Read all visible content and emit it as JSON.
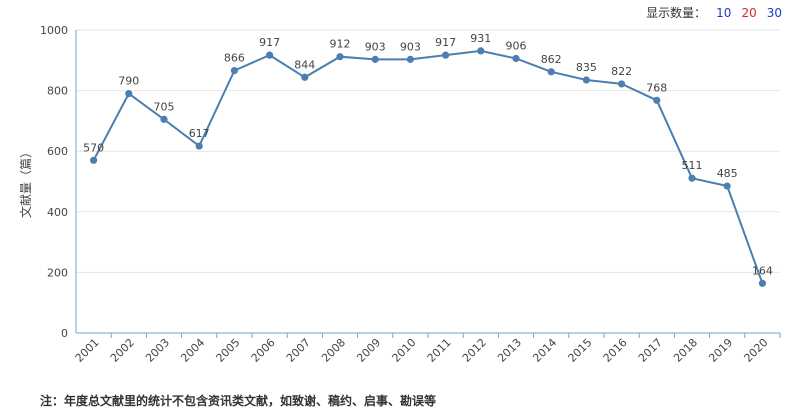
{
  "count_selector": {
    "label": "显示数量：",
    "options": [
      {
        "value": "10",
        "color": "#1a3cc8"
      },
      {
        "value": "20",
        "color": "#e0242b"
      },
      {
        "value": "30",
        "color": "#1a3cc8"
      }
    ]
  },
  "footnote": "注：年度总文献里的统计不包含资讯类文献，如致谢、稿约、启事、勘误等",
  "chart_data": {
    "type": "line",
    "ylabel": "文献量（篇）",
    "xlabel": "",
    "ylim": [
      0,
      1000
    ],
    "yticks": [
      0,
      200,
      400,
      600,
      800,
      1000
    ],
    "x": [
      "2001",
      "2002",
      "2003",
      "2004",
      "2005",
      "2006",
      "2007",
      "2008",
      "2009",
      "2010",
      "2011",
      "2012",
      "2013",
      "2014",
      "2015",
      "2016",
      "2017",
      "2018",
      "2019",
      "2020"
    ],
    "series": [
      {
        "values": [
          570,
          790,
          705,
          617,
          866,
          917,
          844,
          912,
          903,
          903,
          917,
          931,
          906,
          862,
          835,
          822,
          768,
          511,
          485,
          164
        ]
      }
    ],
    "line_color": "#4a7fb0",
    "grid": true
  }
}
